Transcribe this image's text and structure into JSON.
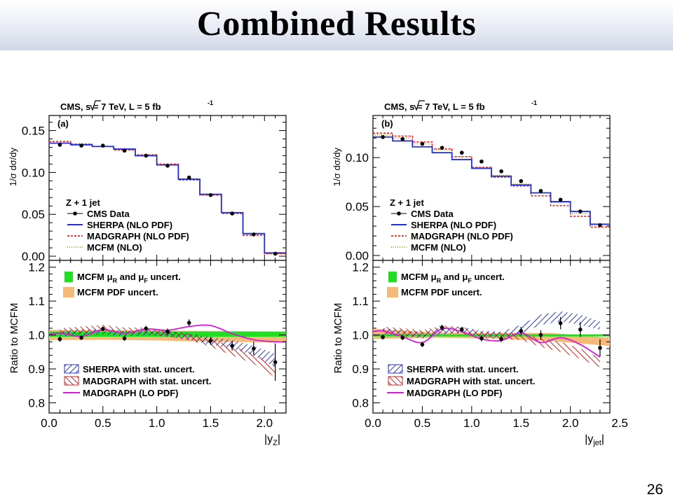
{
  "slide": {
    "title": "Combined Results",
    "page_number": "26"
  },
  "colors": {
    "data": "#000000",
    "sherpa": "#1f2fe0",
    "madgraph": "#e8231c",
    "mcfm": "#9a8a00",
    "mcfm_scale_band": "#22dd22",
    "mcfm_pdf_band": "#f5b979",
    "madgraph_lo": "#d81ad8",
    "sherpa_hatch": "#2a37c8",
    "madgraph_hatch": "#d0231c"
  },
  "panels": [
    {
      "header": "CMS,   s = 7 TeV, L = 5 fb",
      "header_sup": "-1",
      "tag": "(a)",
      "upper_ylabel": "1/σ dσ/dy",
      "lower_ylabel": "Ratio to MCFM",
      "xlabel": "|y",
      "xlabel_sub": "Z",
      "xlabel_end": "|",
      "process_label": "Z + 1 jet",
      "legend_upper": [
        "CMS Data",
        "SHERPA (NLO PDF)",
        "MADGRAPH (NLO PDF)",
        "MCFM (NLO)"
      ],
      "band_labels": [
        "MCFM μ",
        "R",
        " and μ",
        "F",
        " uncert.",
        "MCFM PDF uncert."
      ],
      "legend_lower": [
        "SHERPA with stat. uncert.",
        "MADGRAPH with stat. uncert.",
        "MADGRAPH (LO PDF)"
      ],
      "xticks": [
        "0.0",
        "0.5",
        "1.0",
        "1.5",
        "2.0"
      ],
      "upper_yticks": [
        "0.00",
        "0.05",
        "0.10",
        "0.15"
      ],
      "lower_yticks": [
        "0.8",
        "0.9",
        "1.0",
        "1.1",
        "1.2"
      ]
    },
    {
      "header": "CMS,   s = 7 TeV, L = 5 fb",
      "header_sup": "-1",
      "tag": "(b)",
      "upper_ylabel": "1/σ dσ/dy",
      "lower_ylabel": "Ratio to MCFM",
      "xlabel": "|y",
      "xlabel_sub": "jet",
      "xlabel_end": "|",
      "process_label": "Z + 1 jet",
      "legend_upper": [
        "CMS Data",
        "SHERPA (NLO PDF)",
        "MADGRAPH (NLO PDF)",
        "MCFM (NLO)"
      ],
      "band_labels": [
        "MCFM μ",
        "R",
        " and μ",
        "F",
        " uncert.",
        "MCFM PDF uncert."
      ],
      "legend_lower": [
        "SHERPA with stat. uncert.",
        "MADGRAPH with stat. uncert.",
        "MADGRAPH (LO PDF)"
      ],
      "xticks": [
        "0.0",
        "0.5",
        "1.0",
        "1.5",
        "2.0",
        "2.5"
      ],
      "upper_yticks": [
        "0.00",
        "0.05",
        "0.10"
      ],
      "lower_yticks": [
        "0.8",
        "0.9",
        "1.0",
        "1.1",
        "1.2"
      ]
    }
  ],
  "chart_data": [
    {
      "type": "line",
      "title": "CMS, √s = 7 TeV, L = 5 fb-1 (a)",
      "xlabel": "|yZ|",
      "upper": {
        "ylabel": "1/σ dσ/dy",
        "xlim": [
          0,
          2.2
        ],
        "ylim": [
          -0.005,
          0.168
        ],
        "bin_edges": [
          0.0,
          0.2,
          0.4,
          0.6,
          0.8,
          1.0,
          1.2,
          1.4,
          1.6,
          1.8,
          2.0,
          2.2
        ],
        "series": [
          {
            "name": "CMS Data",
            "x": [
              0.1,
              0.3,
              0.5,
              0.7,
              0.9,
              1.1,
              1.3,
              1.5,
              1.7,
              1.9,
              2.1
            ],
            "values": [
              0.133,
              0.132,
              0.132,
              0.126,
              0.12,
              0.108,
              0.094,
              0.073,
              0.051,
              0.026,
              0.003
            ]
          },
          {
            "name": "SHERPA (NLO PDF)",
            "values": [
              0.135,
              0.133,
              0.131,
              0.128,
              0.12,
              0.109,
              0.092,
              0.074,
              0.052,
              0.027,
              0.004
            ]
          },
          {
            "name": "MADGRAPH (NLO PDF)",
            "values": [
              0.137,
              0.134,
              0.131,
              0.127,
              0.121,
              0.11,
              0.091,
              0.073,
              0.051,
              0.025,
              0.003
            ]
          },
          {
            "name": "MCFM (NLO)",
            "values": [
              0.135,
              0.133,
              0.131,
              0.127,
              0.12,
              0.109,
              0.092,
              0.073,
              0.052,
              0.026,
              0.003
            ]
          }
        ]
      },
      "lower": {
        "ylabel": "Ratio to MCFM",
        "xlim": [
          0,
          2.2
        ],
        "ylim": [
          0.77,
          1.22
        ],
        "mcfm_scale_band": [
          0.995,
          1.01
        ],
        "mcfm_pdf_band": {
          "x": [
            0.0,
            0.5,
            1.0,
            1.5,
            2.2
          ],
          "low": [
            0.985,
            0.986,
            0.984,
            0.98,
            0.978
          ],
          "high": [
            1.015,
            1.014,
            1.013,
            1.012,
            1.01
          ]
        },
        "data": {
          "x": [
            0.1,
            0.3,
            0.5,
            0.7,
            0.9,
            1.1,
            1.3,
            1.5,
            1.7,
            1.9,
            2.1
          ],
          "values": [
            0.988,
            0.992,
            1.018,
            0.99,
            1.019,
            1.01,
            1.036,
            0.983,
            0.968,
            0.96,
            0.92
          ],
          "errors": [
            0.008,
            0.007,
            0.007,
            0.007,
            0.008,
            0.009,
            0.01,
            0.012,
            0.014,
            0.02,
            0.055
          ]
        },
        "sherpa_band": {
          "x": [
            0.1,
            0.3,
            0.5,
            0.7,
            0.9,
            1.1,
            1.3,
            1.5,
            1.7,
            1.9,
            2.1
          ],
          "low": [
            0.995,
            1.0,
            1.002,
            0.996,
            1.0,
            0.995,
            0.985,
            0.972,
            0.96,
            0.94,
            0.905
          ],
          "high": [
            1.012,
            1.016,
            1.018,
            1.012,
            1.016,
            1.012,
            1.004,
            0.994,
            0.985,
            0.968,
            0.945
          ]
        },
        "madgraph_band": {
          "x": [
            0.1,
            0.3,
            0.5,
            0.7,
            0.9,
            1.1,
            1.3,
            1.5,
            1.7,
            1.9,
            2.1
          ],
          "low": [
            1.0,
            1.005,
            1.012,
            1.004,
            1.005,
            0.995,
            0.985,
            0.965,
            0.94,
            0.915,
            0.875
          ],
          "high": [
            1.02,
            1.025,
            1.03,
            1.022,
            1.022,
            1.012,
            1.005,
            0.988,
            0.968,
            0.945,
            0.91
          ]
        },
        "madgraph_lo": {
          "x": [
            0.0,
            0.1,
            0.3,
            0.5,
            0.7,
            0.9,
            1.1,
            1.3,
            1.5,
            1.7,
            1.9,
            2.1,
            2.2
          ],
          "values": [
            1.002,
            1.006,
            0.996,
            1.016,
            1.005,
            1.018,
            1.014,
            1.025,
            1.028,
            1.004,
            0.986,
            0.98,
            0.98
          ]
        }
      }
    },
    {
      "type": "line",
      "title": "CMS, √s = 7 TeV, L = 5 fb-1 (b)",
      "xlabel": "|yjet|",
      "upper": {
        "ylabel": "1/σ dσ/dy",
        "xlim": [
          0,
          2.4
        ],
        "ylim": [
          -0.005,
          0.143
        ],
        "bin_edges": [
          0.0,
          0.2,
          0.4,
          0.6,
          0.8,
          1.0,
          1.2,
          1.4,
          1.6,
          1.8,
          2.0,
          2.2,
          2.4
        ],
        "series": [
          {
            "name": "CMS Data",
            "x": [
              0.1,
              0.3,
              0.5,
              0.7,
              0.9,
              1.1,
              1.3,
              1.5,
              1.7,
              1.9,
              2.1,
              2.3
            ],
            "values": [
              0.121,
              0.119,
              0.114,
              0.11,
              0.105,
              0.096,
              0.086,
              0.076,
              0.066,
              0.057,
              0.045,
              0.031
            ]
          },
          {
            "name": "SHERPA (NLO PDF)",
            "values": [
              0.121,
              0.117,
              0.111,
              0.105,
              0.098,
              0.089,
              0.081,
              0.072,
              0.064,
              0.055,
              0.045,
              0.032
            ]
          },
          {
            "name": "MADGRAPH (NLO PDF)",
            "values": [
              0.125,
              0.122,
              0.116,
              0.109,
              0.101,
              0.09,
              0.08,
              0.071,
              0.061,
              0.051,
              0.04,
              0.029
            ]
          },
          {
            "name": "MCFM (NLO)",
            "values": [
              0.123,
              0.12,
              0.114,
              0.108,
              0.101,
              0.09,
              0.082,
              0.073,
              0.064,
              0.054,
              0.043,
              0.031
            ]
          }
        ]
      },
      "lower": {
        "ylabel": "Ratio to MCFM",
        "xlim": [
          0,
          2.4
        ],
        "ylim": [
          0.77,
          1.22
        ],
        "mcfm_scale_band": [
          0.996,
          1.002
        ],
        "mcfm_pdf_band": {
          "x": [
            0.0,
            0.6,
            1.2,
            1.8,
            2.4
          ],
          "low": [
            0.988,
            0.992,
            0.99,
            0.982,
            0.968
          ],
          "high": [
            1.018,
            1.008,
            1.006,
            1.006,
            0.992
          ]
        },
        "data": {
          "x": [
            0.1,
            0.3,
            0.5,
            0.7,
            0.9,
            1.1,
            1.3,
            1.5,
            1.7,
            1.9,
            2.1,
            2.3
          ],
          "values": [
            0.994,
            0.992,
            0.972,
            1.022,
            1.016,
            0.99,
            0.988,
            1.012,
            1.0,
            1.035,
            1.016,
            0.962
          ],
          "errors": [
            0.008,
            0.007,
            0.007,
            0.008,
            0.008,
            0.009,
            0.009,
            0.012,
            0.014,
            0.018,
            0.022,
            0.025
          ]
        },
        "sherpa_band": {
          "x": [
            0.1,
            0.3,
            0.5,
            0.7,
            0.9,
            1.1,
            1.3,
            1.5,
            1.7,
            1.9,
            2.1,
            2.3
          ],
          "low": [
            1.002,
            0.996,
            0.99,
            1.002,
            1.006,
            0.994,
            0.99,
            1.004,
            1.03,
            1.04,
            1.03,
            1.015
          ],
          "high": [
            1.02,
            1.014,
            1.008,
            1.022,
            1.024,
            1.012,
            1.01,
            1.03,
            1.06,
            1.07,
            1.06,
            1.04
          ]
        },
        "madgraph_band": {
          "x": [
            0.1,
            0.3,
            0.5,
            0.7,
            0.9,
            1.1,
            1.3,
            1.5,
            1.7,
            1.9,
            2.1,
            2.3
          ],
          "low": [
            1.003,
            0.998,
            0.994,
            1.008,
            1.004,
            0.99,
            0.988,
            0.985,
            0.965,
            0.95,
            0.93,
            0.905
          ],
          "high": [
            1.025,
            1.02,
            1.014,
            1.028,
            1.024,
            1.01,
            1.008,
            1.006,
            0.99,
            0.98,
            0.96,
            0.932
          ]
        },
        "madgraph_lo": {
          "x": [
            0.0,
            0.1,
            0.3,
            0.5,
            0.7,
            0.9,
            1.1,
            1.3,
            1.5,
            1.7,
            1.9,
            2.1,
            2.3
          ],
          "values": [
            1.01,
            1.012,
            0.995,
            0.978,
            1.018,
            1.01,
            0.988,
            0.984,
            1.006,
            0.978,
            0.992,
            0.972,
            0.935
          ]
        }
      }
    }
  ]
}
